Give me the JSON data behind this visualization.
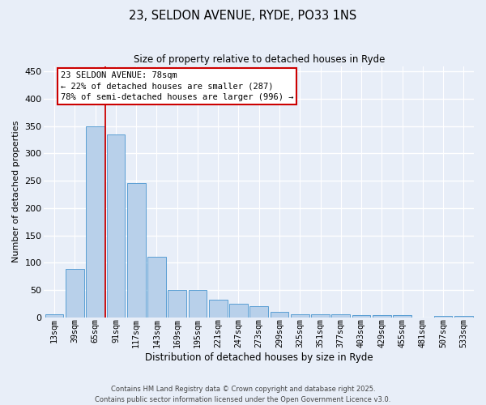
{
  "title": "23, SELDON AVENUE, RYDE, PO33 1NS",
  "subtitle": "Size of property relative to detached houses in Ryde",
  "xlabel": "Distribution of detached houses by size in Ryde",
  "ylabel": "Number of detached properties",
  "categories": [
    "13sqm",
    "39sqm",
    "65sqm",
    "91sqm",
    "117sqm",
    "143sqm",
    "169sqm",
    "195sqm",
    "221sqm",
    "247sqm",
    "273sqm",
    "299sqm",
    "325sqm",
    "351sqm",
    "377sqm",
    "403sqm",
    "429sqm",
    "455sqm",
    "481sqm",
    "507sqm",
    "533sqm"
  ],
  "values": [
    6,
    89,
    350,
    335,
    246,
    111,
    50,
    50,
    32,
    25,
    20,
    10,
    5,
    5,
    5,
    4,
    4,
    4,
    0,
    2,
    3
  ],
  "bar_color": "#b8d0ea",
  "bar_edge_color": "#5a9fd4",
  "background_color": "#e8eef8",
  "vline_color": "#cc0000",
  "vline_x": 2.5,
  "annotation_line1": "23 SELDON AVENUE: 78sqm",
  "annotation_line2": "← 22% of detached houses are smaller (287)",
  "annotation_line3": "78% of semi-detached houses are larger (996) →",
  "annotation_box_color": "#ffffff",
  "annotation_box_edge": "#cc0000",
  "footer": "Contains HM Land Registry data © Crown copyright and database right 2025.\nContains public sector information licensed under the Open Government Licence v3.0.",
  "ylim": [
    0,
    460
  ],
  "yticks": [
    0,
    50,
    100,
    150,
    200,
    250,
    300,
    350,
    400,
    450
  ]
}
